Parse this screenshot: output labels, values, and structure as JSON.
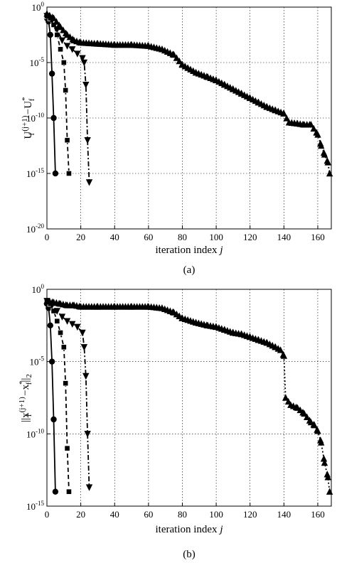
{
  "chart_data": [
    {
      "type": "line",
      "panel_label": "(a)",
      "xlabel": "iteration index",
      "xlabel_var": "j",
      "ylabel_main": "U",
      "ylabel_sup1": "(j+1)",
      "ylabel_sub1": "f",
      "ylabel_mid": " −U",
      "ylabel_sup2": "*",
      "ylabel_sub2": "f",
      "xlim": [
        0,
        168
      ],
      "yscale": "log",
      "ylim_exp": [
        -20,
        0
      ],
      "xticks": [
        0,
        20,
        40,
        60,
        80,
        100,
        120,
        140,
        160
      ],
      "ytick_exps": [
        0,
        -5,
        -10,
        -15,
        -20
      ],
      "ytick_labels": [
        {
          "base": "10",
          "exp": "0"
        },
        {
          "base": "10",
          "exp": "-5"
        },
        {
          "base": "10",
          "exp": "-10"
        },
        {
          "base": "10",
          "exp": "-15"
        },
        {
          "base": "10",
          "exp": "-20"
        }
      ],
      "grid": true,
      "series": [
        {
          "marker": "circle",
          "style": "solid",
          "color": "#000000",
          "x": [
            0,
            1,
            2,
            3,
            4,
            5
          ],
          "y_exp": [
            -1.0,
            -1.3,
            -2.5,
            -6.0,
            -10.0,
            -15.0
          ]
        },
        {
          "marker": "square",
          "style": "dashed",
          "color": "#000000",
          "x": [
            0,
            2,
            4,
            6,
            8,
            10,
            11,
            12,
            13
          ],
          "y_exp": [
            -0.8,
            -1.0,
            -1.6,
            -2.5,
            -3.8,
            -5.0,
            -7.5,
            -12.0,
            -15.0
          ]
        },
        {
          "marker": "triangle-down",
          "style": "dashdot",
          "color": "#000000",
          "x": [
            0,
            3,
            6,
            9,
            12,
            15,
            18,
            21,
            22,
            23,
            24,
            25
          ],
          "y_exp": [
            -0.8,
            -1.2,
            -2.0,
            -3.0,
            -3.5,
            -3.8,
            -4.2,
            -4.6,
            -5.0,
            -7.0,
            -12.0,
            -15.8
          ]
        },
        {
          "marker": "triangle-up",
          "style": "dotted",
          "color": "#000000",
          "x": [
            0,
            4,
            8,
            12,
            16,
            20,
            30,
            40,
            50,
            60,
            68,
            75,
            80,
            88,
            95,
            100,
            105,
            110,
            115,
            120,
            125,
            130,
            135,
            140,
            143,
            148,
            152,
            156,
            160,
            162,
            164,
            166,
            167
          ],
          "y_exp": [
            -0.6,
            -1.0,
            -1.8,
            -2.5,
            -3.0,
            -3.2,
            -3.3,
            -3.4,
            -3.4,
            -3.5,
            -3.8,
            -4.3,
            -5.2,
            -5.9,
            -6.3,
            -6.6,
            -7.0,
            -7.4,
            -7.8,
            -8.2,
            -8.6,
            -9.0,
            -9.3,
            -9.6,
            -10.4,
            -10.5,
            -10.6,
            -10.6,
            -11.5,
            -12.5,
            -13.3,
            -14.0,
            -15.0
          ]
        }
      ]
    },
    {
      "type": "line",
      "panel_label": "(b)",
      "xlabel": "iteration index",
      "xlabel_var": "j",
      "ylabel_main": "||x",
      "ylabel_sup1": "(j+1)",
      "ylabel_sub1": "f",
      "ylabel_mid": " −x",
      "ylabel_sup2": "*",
      "ylabel_sub2": "f",
      "ylabel_tail": "||",
      "ylabel_tail_sub": "2",
      "xlim": [
        0,
        168
      ],
      "yscale": "log",
      "ylim_exp": [
        -15,
        0
      ],
      "xticks": [
        0,
        20,
        40,
        60,
        80,
        100,
        120,
        140,
        160
      ],
      "ytick_exps": [
        0,
        -5,
        -10,
        -15
      ],
      "ytick_labels": [
        {
          "base": "10",
          "exp": "0"
        },
        {
          "base": "10",
          "exp": "-5"
        },
        {
          "base": "10",
          "exp": "-10"
        },
        {
          "base": "10",
          "exp": "-15"
        }
      ],
      "grid": true,
      "series": [
        {
          "marker": "circle",
          "style": "solid",
          "color": "#000000",
          "x": [
            0,
            1,
            2,
            3,
            4,
            5
          ],
          "y_exp": [
            -1.0,
            -1.3,
            -2.5,
            -5.0,
            -9.0,
            -14.0
          ]
        },
        {
          "marker": "square",
          "style": "dashed",
          "color": "#000000",
          "x": [
            0,
            2,
            4,
            6,
            8,
            10,
            11,
            12,
            13
          ],
          "y_exp": [
            -0.8,
            -1.0,
            -1.5,
            -2.2,
            -3.0,
            -4.0,
            -6.5,
            -11.0,
            -14.0
          ]
        },
        {
          "marker": "triangle-down",
          "style": "dashdot",
          "color": "#000000",
          "x": [
            0,
            3,
            6,
            9,
            12,
            15,
            18,
            21,
            22,
            23,
            24,
            25
          ],
          "y_exp": [
            -0.8,
            -1.1,
            -1.5,
            -1.9,
            -2.2,
            -2.4,
            -2.6,
            -3.0,
            -4.0,
            -6.0,
            -10.0,
            -13.7
          ]
        },
        {
          "marker": "triangle-up",
          "style": "dotted",
          "color": "#000000",
          "x": [
            0,
            4,
            8,
            12,
            16,
            20,
            30,
            40,
            50,
            60,
            68,
            75,
            80,
            88,
            95,
            100,
            105,
            110,
            115,
            120,
            125,
            130,
            135,
            138,
            140,
            141,
            144,
            148,
            152,
            156,
            158,
            160,
            162,
            164,
            166,
            167
          ],
          "y_exp": [
            -0.8,
            -0.9,
            -1.0,
            -1.1,
            -1.1,
            -1.2,
            -1.2,
            -1.2,
            -1.2,
            -1.2,
            -1.3,
            -1.6,
            -2.0,
            -2.3,
            -2.5,
            -2.6,
            -2.8,
            -3.0,
            -3.1,
            -3.3,
            -3.5,
            -3.7,
            -4.0,
            -4.2,
            -4.6,
            -7.5,
            -8.0,
            -8.2,
            -8.6,
            -9.2,
            -9.4,
            -9.8,
            -10.6,
            -12.0,
            -13.0,
            -14.0
          ]
        }
      ]
    }
  ]
}
